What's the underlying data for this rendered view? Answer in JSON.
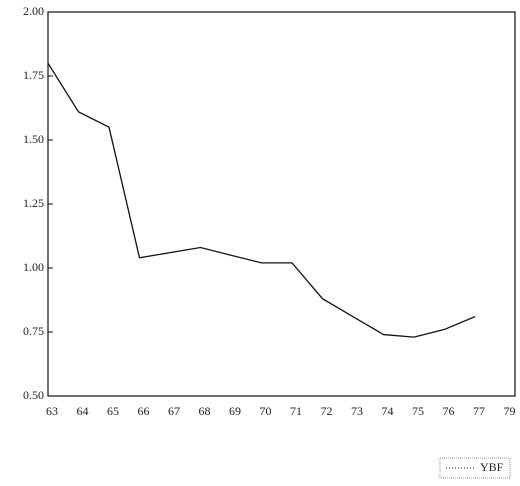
{
  "chart_data": {
    "type": "line",
    "categories": [
      "63",
      "64",
      "65",
      "66",
      "67",
      "68",
      "69",
      "70",
      "71",
      "72",
      "73",
      "74",
      "75",
      "76",
      "77",
      "79"
    ],
    "series": [
      {
        "name": "YBF",
        "color": "#111111",
        "values": [
          1.8,
          1.61,
          1.55,
          1.04,
          1.06,
          1.08,
          1.05,
          1.02,
          1.02,
          0.88,
          0.81,
          0.74,
          0.73,
          0.76,
          0.81,
          null
        ]
      }
    ],
    "ylim": [
      0.5,
      2.0
    ],
    "yticks": [
      {
        "value": 0.5,
        "label": "0.50"
      },
      {
        "value": 0.75,
        "label": "0.75"
      },
      {
        "value": 1.0,
        "label": "1.00"
      },
      {
        "value": 1.25,
        "label": "1.25"
      },
      {
        "value": 1.5,
        "label": "1.50"
      },
      {
        "value": 1.75,
        "label": "1.75"
      },
      {
        "value": 2.0,
        "label": "2.00"
      }
    ],
    "legend": "bottom-right"
  }
}
